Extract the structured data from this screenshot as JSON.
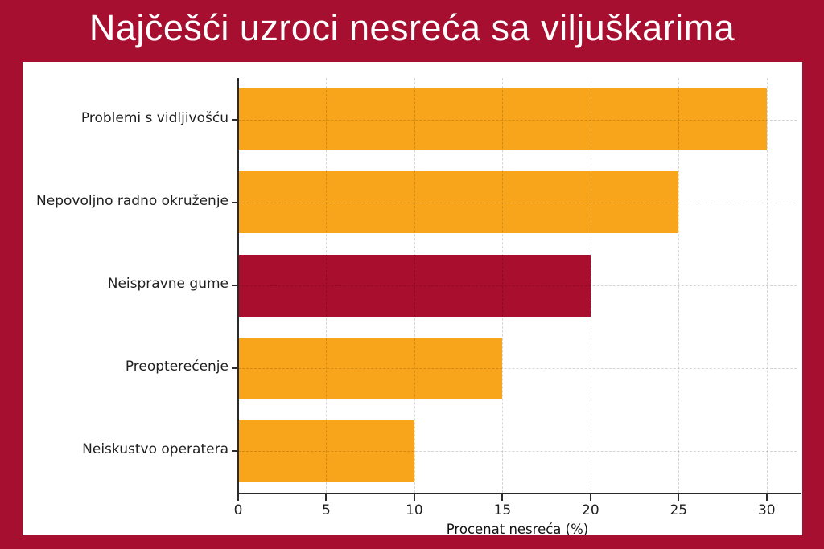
{
  "colors": {
    "frame": "#A60F2F",
    "panel": "#FFFFFF",
    "title_text": "#FFFFFF",
    "bar_orange": "#F9A51B",
    "bar_crimson": "#A90E2F",
    "axis": "#2B2B2B",
    "tick_text": "#1F1F1F"
  },
  "chart_data": {
    "type": "bar",
    "orientation": "horizontal",
    "title": "Najčešći uzroci nesreća sa viljuškarima",
    "categories": [
      "Problemi s vidljivošću",
      "Nepovoljno radno okruženje",
      "Neispravne gume",
      "Preopterećenje",
      "Neiskustvo operatera"
    ],
    "values": [
      30,
      25,
      20,
      15,
      10
    ],
    "bar_colors": [
      "#F9A51B",
      "#F9A51B",
      "#A90E2F",
      "#F9A51B",
      "#F9A51B"
    ],
    "highlighted_category": "Neispravne gume",
    "xlabel": "Procenat nesreća (%)",
    "xticks": [
      0,
      5,
      10,
      15,
      20,
      25,
      30
    ],
    "xlim": [
      0,
      31.7
    ],
    "grid": "dashed",
    "legend": null,
    "plot_background": "#FFFFFF"
  }
}
